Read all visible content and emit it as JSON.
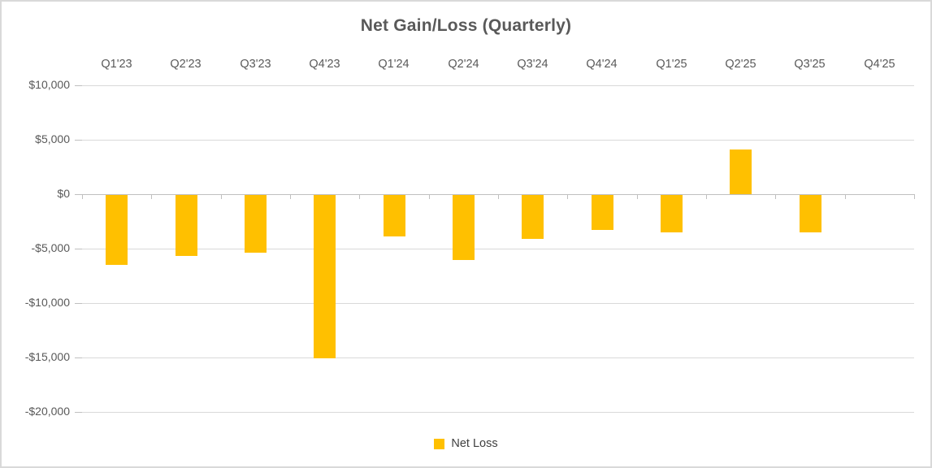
{
  "chart_data": {
    "type": "bar",
    "title": "Net Gain/Loss (Quarterly)",
    "categories": [
      "Q1'23",
      "Q2'23",
      "Q3'23",
      "Q4'23",
      "Q1'24",
      "Q2'24",
      "Q3'24",
      "Q4'24",
      "Q1'25",
      "Q2'25",
      "Q3'25",
      "Q4'25"
    ],
    "series": [
      {
        "name": "Net Loss",
        "color": "#FFC000",
        "values": [
          -6400,
          -5600,
          -5300,
          -15000,
          -3800,
          -6000,
          -4000,
          -3200,
          -3400,
          4100,
          -3400,
          0
        ]
      }
    ],
    "xlabel": "",
    "ylabel": "",
    "ylim": [
      -20000,
      10000
    ],
    "yticks": [
      {
        "value": 10000,
        "label": "$10,000"
      },
      {
        "value": 5000,
        "label": "$5,000"
      },
      {
        "value": 0,
        "label": "$0"
      },
      {
        "value": -5000,
        "label": "-$5,000"
      },
      {
        "value": -10000,
        "label": "-$10,000"
      },
      {
        "value": -15000,
        "label": "-$15,000"
      },
      {
        "value": -20000,
        "label": "-$20,000"
      }
    ],
    "grid": true,
    "legend_position": "bottom",
    "category_axis_position": "top",
    "colors": {
      "bar": "#FFC000",
      "gridline": "#D9D9D9",
      "axis_line": "#BFBFBF",
      "title_text": "#595959",
      "axis_text": "#595959",
      "legend_text": "#404040",
      "frame_border": "#D9D9D9",
      "background": "#FFFFFF"
    }
  }
}
